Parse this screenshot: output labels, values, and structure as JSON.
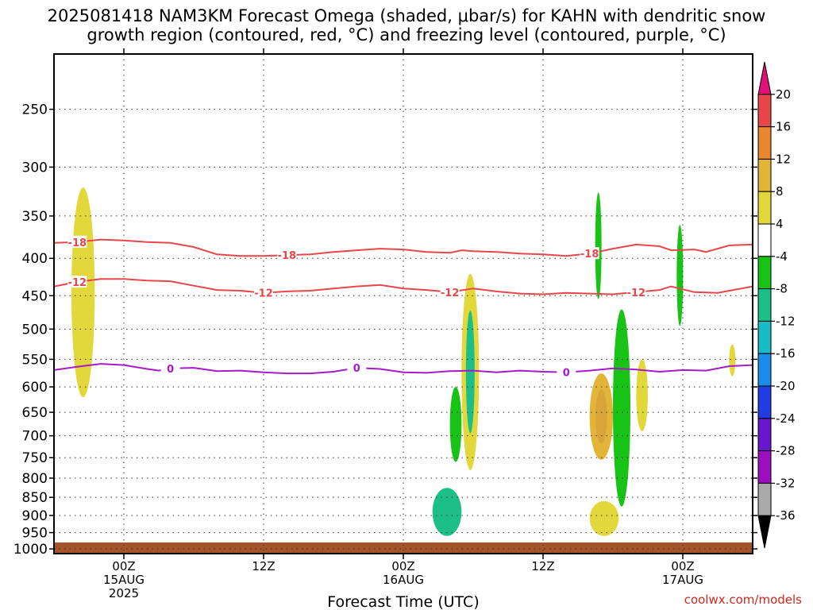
{
  "title_line1": "2025081418 NAM3KM Forecast Omega (shaded, μbar/s) for KAHN with dendritic snow",
  "title_line2": "growth region (contoured, red, °C) and freezing level (contoured, purple, °C)",
  "credit": "coolwx.com/models",
  "chart_data": {
    "type": "heatmap",
    "title": "2025081418 NAM3KM Forecast Omega (shaded, μbar/s) for KAHN with dendritic snow growth region (contoured, red, °C) and freezing level (contoured, purple, °C)",
    "xlabel": "Forecast Time (UTC)",
    "ylabel": "",
    "x_ticks": [
      {
        "hour": 6,
        "lines": [
          "00Z",
          "15AUG",
          "2025"
        ]
      },
      {
        "hour": 18,
        "lines": [
          "12Z"
        ]
      },
      {
        "hour": 30,
        "lines": [
          "00Z",
          "16AUG"
        ]
      },
      {
        "hour": 42,
        "lines": [
          "12Z"
        ]
      },
      {
        "hour": 54,
        "lines": [
          "00Z",
          "17AUG"
        ]
      }
    ],
    "xlim_hours": [
      0,
      60
    ],
    "y_scale": "log-pressure",
    "y_ticks": [
      250,
      300,
      350,
      400,
      450,
      500,
      550,
      600,
      650,
      700,
      750,
      800,
      850,
      900,
      950,
      1000
    ],
    "ylim_hpa": [
      210,
      1015
    ],
    "grid": "dotted, at every pressure level and time tick",
    "colorbar": {
      "levels": [
        -36,
        -32,
        -28,
        -24,
        -20,
        -16,
        -12,
        -8,
        -4,
        4,
        8,
        12,
        16,
        20
      ],
      "labels": [
        "20",
        "16",
        "12",
        "8",
        "4",
        "-4",
        "-8",
        "-12",
        "-16",
        "-20",
        "-24",
        "-28",
        "-32",
        "-36"
      ],
      "colors_top_to_bottom": [
        "#e0117a",
        "#e8474a",
        "#e8872f",
        "#e2b437",
        "#e2d83c",
        "#ffffff",
        "#19c216",
        "#1dbf89",
        "#17bcc4",
        "#1b8ce8",
        "#1f3de0",
        "#6818cc",
        "#9b0fbf",
        "#aaaaaa",
        "#000000"
      ]
    },
    "contours": [
      {
        "name": "-18",
        "color": "#e8474a",
        "label": "-18",
        "points": [
          [
            0,
            381
          ],
          [
            2,
            380
          ],
          [
            4,
            377
          ],
          [
            6,
            378
          ],
          [
            8,
            380
          ],
          [
            10,
            381
          ],
          [
            12,
            386
          ],
          [
            14,
            395
          ],
          [
            16,
            397
          ],
          [
            18,
            397
          ],
          [
            20,
            396
          ],
          [
            22,
            395
          ],
          [
            24,
            392
          ],
          [
            26,
            390
          ],
          [
            28,
            388
          ],
          [
            30,
            389
          ],
          [
            32,
            392
          ],
          [
            34,
            393
          ],
          [
            35,
            390
          ],
          [
            36,
            391
          ],
          [
            38,
            392
          ],
          [
            40,
            394
          ],
          [
            42,
            395
          ],
          [
            44,
            397
          ],
          [
            46,
            394
          ],
          [
            48,
            388
          ],
          [
            50,
            383
          ],
          [
            52,
            385
          ],
          [
            53,
            390
          ],
          [
            55,
            389
          ],
          [
            56,
            392
          ],
          [
            57,
            388
          ],
          [
            58,
            384
          ],
          [
            60,
            383
          ]
        ],
        "label_hours": [
          3,
          20,
          46
        ]
      },
      {
        "name": "-12",
        "color": "#e8474a",
        "label": "-12",
        "points": [
          [
            0,
            437
          ],
          [
            2,
            431
          ],
          [
            4,
            427
          ],
          [
            6,
            427
          ],
          [
            8,
            429
          ],
          [
            10,
            430
          ],
          [
            12,
            436
          ],
          [
            14,
            442
          ],
          [
            16,
            443
          ],
          [
            18,
            446
          ],
          [
            20,
            444
          ],
          [
            22,
            443
          ],
          [
            24,
            440
          ],
          [
            26,
            437
          ],
          [
            28,
            435
          ],
          [
            30,
            440
          ],
          [
            32,
            442
          ],
          [
            34,
            445
          ],
          [
            36,
            440
          ],
          [
            38,
            444
          ],
          [
            40,
            447
          ],
          [
            42,
            448
          ],
          [
            44,
            446
          ],
          [
            46,
            447
          ],
          [
            48,
            448
          ],
          [
            50,
            445
          ],
          [
            52,
            442
          ],
          [
            53,
            437
          ],
          [
            55,
            445
          ],
          [
            57,
            446
          ],
          [
            58,
            443
          ],
          [
            60,
            437
          ]
        ],
        "label_hours": [
          2,
          18,
          34,
          50
        ]
      },
      {
        "name": "0",
        "color": "#a51bc8",
        "label": "0",
        "points": [
          [
            0,
            569
          ],
          [
            2,
            563
          ],
          [
            4,
            558
          ],
          [
            6,
            560
          ],
          [
            8,
            567
          ],
          [
            9,
            570
          ],
          [
            10,
            566
          ],
          [
            12,
            565
          ],
          [
            14,
            571
          ],
          [
            16,
            570
          ],
          [
            18,
            573
          ],
          [
            20,
            575
          ],
          [
            22,
            575
          ],
          [
            24,
            572
          ],
          [
            26,
            565
          ],
          [
            28,
            567
          ],
          [
            30,
            573
          ],
          [
            32,
            574
          ],
          [
            34,
            571
          ],
          [
            36,
            570
          ],
          [
            38,
            573
          ],
          [
            40,
            570
          ],
          [
            42,
            572
          ],
          [
            44,
            573
          ],
          [
            46,
            570
          ],
          [
            48,
            566
          ],
          [
            50,
            568
          ],
          [
            52,
            572
          ],
          [
            54,
            569
          ],
          [
            56,
            570
          ],
          [
            58,
            562
          ],
          [
            60,
            560
          ]
        ],
        "label_hours": [
          10,
          27,
          44
        ]
      }
    ],
    "omega_regions": [
      {
        "value_range": [
          4,
          8
        ],
        "approx_hours": [
          1.5,
          3.5
        ],
        "approx_hpa": [
          320,
          620
        ]
      },
      {
        "value_range": [
          -8,
          -4
        ],
        "approx_hours": [
          34,
          35
        ],
        "approx_hpa": [
          600,
          760
        ]
      },
      {
        "value_range": [
          4,
          8
        ],
        "approx_hours": [
          35,
          36.5
        ],
        "approx_hpa": [
          420,
          780
        ]
      },
      {
        "value_range": [
          -12,
          -4
        ],
        "approx_hours": [
          32.5,
          35
        ],
        "approx_hpa": [
          825,
          960
        ]
      },
      {
        "value_range": [
          -8,
          -4
        ],
        "approx_hours": [
          46.5,
          47
        ],
        "approx_hpa": [
          325,
          455
        ]
      },
      {
        "value_range": [
          4,
          12
        ],
        "approx_hours": [
          46,
          48
        ],
        "approx_hpa": [
          575,
          755
        ]
      },
      {
        "value_range": [
          -8,
          -4
        ],
        "approx_hours": [
          48,
          49.5
        ],
        "approx_hpa": [
          470,
          875
        ]
      },
      {
        "value_range": [
          -8,
          -4
        ],
        "approx_hours": [
          53.5,
          54
        ],
        "approx_hpa": [
          360,
          495
        ]
      },
      {
        "value_range": [
          4,
          8
        ],
        "approx_hours": [
          46,
          48.5
        ],
        "approx_hpa": [
          860,
          960
        ]
      },
      {
        "value_range": [
          4,
          8
        ],
        "approx_hours": [
          50,
          51
        ],
        "approx_hpa": [
          550,
          690
        ]
      },
      {
        "value_range": [
          4,
          8
        ],
        "approx_hours": [
          58,
          58.5
        ],
        "approx_hpa": [
          525,
          580
        ]
      }
    ],
    "terrain": {
      "color": "#a5542a",
      "surface_hpa": 980
    }
  }
}
